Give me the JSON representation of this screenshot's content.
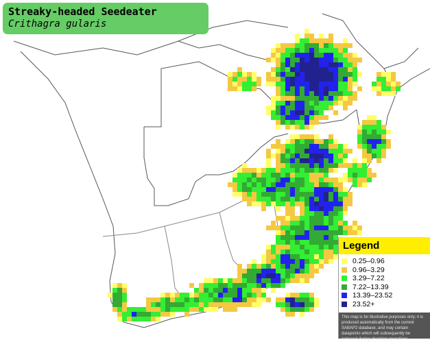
{
  "title": {
    "common_name": "Streaky-headed Seedeater",
    "scientific_name": "Crithagra gularis",
    "box_color": "#66cc66"
  },
  "map": {
    "land_color": "#ffffff",
    "border_color": "#555555",
    "grid_color": "#cccccc"
  },
  "legend": {
    "title": "Legend",
    "header_color": "#ffee00",
    "items": [
      {
        "label": "0.25–0.96",
        "color": "#ffff66"
      },
      {
        "label": "0.96–3.29",
        "color": "#f5c842"
      },
      {
        "label": "3.29–7.22",
        "color": "#33ee33"
      },
      {
        "label": "7.22–13.39",
        "color": "#33aa33"
      },
      {
        "label": "13.39–23.52",
        "color": "#2222ee"
      },
      {
        "label": "23.52+",
        "color": "#22228f"
      }
    ],
    "disclaimer": "This map is for illustrative purposes only; it is produced automatically from the current SABAP2 database, and may contain datapoints which will subsequently be removed during checking operations."
  }
}
